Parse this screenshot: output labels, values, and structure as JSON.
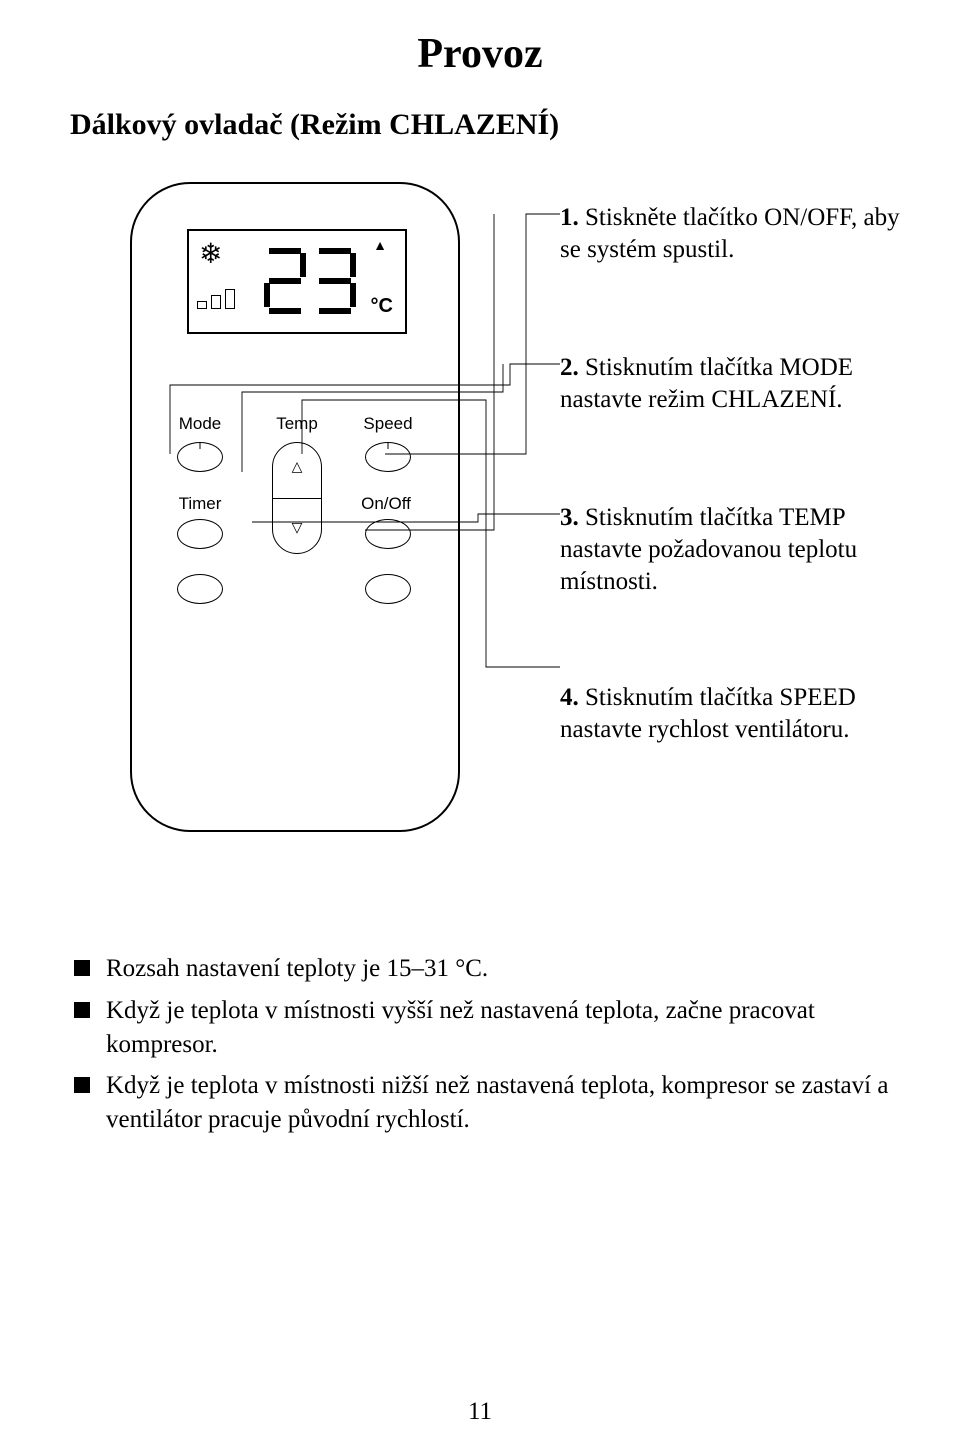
{
  "page": {
    "title": "Provoz",
    "subtitle": "Dálkový ovladač (Režim CHLAZENÍ)",
    "page_number": "11",
    "colors": {
      "text": "#000000",
      "background": "#ffffff",
      "stroke": "#000000"
    }
  },
  "remote": {
    "lcd": {
      "digits": "23",
      "unit": "°C",
      "icon": "snowflake",
      "up_indicator": "▲"
    },
    "labels": {
      "mode": "Mode",
      "temp": "Temp",
      "speed": "Speed",
      "timer": "Timer",
      "onoff": "On/Off"
    }
  },
  "instructions": [
    {
      "n": "1.",
      "text": "Stiskněte tlačítko ON/OFF, aby se systém spustil."
    },
    {
      "n": "2.",
      "text": "Stisknutím tlačítka MODE nastavte režim CHLAZENÍ."
    },
    {
      "n": "3.",
      "text": "Stisknutím tlačítka TEMP nastavte požadovanou teplotu místnosti."
    },
    {
      "n": "4.",
      "text": "Stisknutím tlačítka SPEED nastavte rychlost ventilátoru."
    }
  ],
  "notes": [
    "Rozsah nastavení teploty je 15–31 °C.",
    "Když je teplota v místnosti vyšší než nastavená teplota, začne pracovat kompresor.",
    "Když je teplota v místnosti nižší než nastavená teplota, kompresor se zastaví a ventilátor pracuje původní rychlostí."
  ],
  "callouts": {
    "stroke": "#000000",
    "stroke_width": 0.9,
    "segments": [
      [
        [
          315,
          272
        ],
        [
          456,
          272
        ],
        [
          456,
          32
        ],
        [
          490,
          32
        ]
      ],
      [
        [
          295,
          348
        ],
        [
          424,
          348
        ],
        [
          424,
          32
        ],
        [
          424,
          32
        ]
      ],
      [
        [
          100,
          272
        ],
        [
          100,
          203
        ],
        [
          440,
          203
        ],
        [
          440,
          182
        ],
        [
          490,
          182
        ]
      ],
      [
        [
          172,
          290
        ],
        [
          172,
          210
        ],
        [
          433,
          210
        ],
        [
          433,
          182
        ]
      ],
      [
        [
          182,
          340
        ],
        [
          408,
          340
        ],
        [
          408,
          332
        ],
        [
          490,
          332
        ]
      ],
      [
        [
          232,
          272
        ],
        [
          232,
          218
        ],
        [
          416,
          218
        ],
        [
          416,
          485
        ],
        [
          490,
          485
        ]
      ]
    ]
  }
}
